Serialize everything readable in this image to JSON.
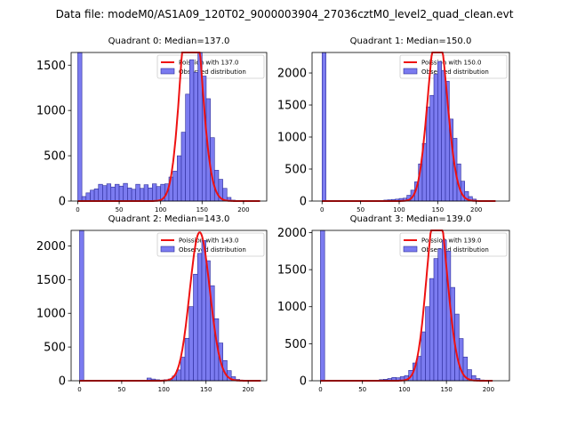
{
  "figure": {
    "suptitle": "Data file: modeM0/AS1A09_120T02_9000003904_27036cztM0_level2_quad_clean.evt"
  },
  "colors": {
    "bar_fill": "#7b7bf0",
    "bar_edge": "#2c2c9a",
    "curve": "#ee1111",
    "legend_border": "#cccccc"
  },
  "chart_data": [
    {
      "type": "bar",
      "title": "Quadrant 0: Median=137.0",
      "xlim": [
        -8,
        228
      ],
      "ylim": [
        0,
        1640
      ],
      "xticks": [
        0,
        50,
        100,
        150,
        200
      ],
      "yticks": [
        0,
        500,
        1000,
        1500
      ],
      "bin_width": 5,
      "legend": {
        "placement": "top-right",
        "curve_label": "Poission with 137.0",
        "bars_label": "Observed distribution"
      },
      "bins": [
        [
          0,
          1640
        ],
        [
          5,
          50
        ],
        [
          10,
          90
        ],
        [
          15,
          120
        ],
        [
          20,
          135
        ],
        [
          25,
          185
        ],
        [
          30,
          170
        ],
        [
          35,
          190
        ],
        [
          40,
          155
        ],
        [
          45,
          185
        ],
        [
          50,
          165
        ],
        [
          55,
          195
        ],
        [
          60,
          145
        ],
        [
          65,
          130
        ],
        [
          70,
          185
        ],
        [
          75,
          140
        ],
        [
          80,
          180
        ],
        [
          85,
          145
        ],
        [
          90,
          190
        ],
        [
          95,
          160
        ],
        [
          100,
          185
        ],
        [
          105,
          190
        ],
        [
          110,
          265
        ],
        [
          115,
          330
        ],
        [
          120,
          500
        ],
        [
          125,
          760
        ],
        [
          130,
          1180
        ],
        [
          135,
          1560
        ],
        [
          140,
          1420
        ],
        [
          145,
          1640
        ],
        [
          150,
          1380
        ],
        [
          155,
          1130
        ],
        [
          160,
          700
        ],
        [
          165,
          340
        ],
        [
          170,
          240
        ],
        [
          175,
          140
        ],
        [
          180,
          40
        ],
        [
          185,
          10
        ],
        [
          190,
          5
        ]
      ],
      "curve": {
        "mean": 137,
        "x_range": [
          0,
          220
        ]
      }
    },
    {
      "type": "bar",
      "title": "Quadrant 1: Median=150.0",
      "xlim": [
        -13,
        243
      ],
      "ylim": [
        0,
        2320
      ],
      "xticks": [
        0,
        50,
        100,
        150,
        200
      ],
      "yticks": [
        0,
        500,
        1000,
        1500,
        2000
      ],
      "bin_width": 5,
      "legend": {
        "placement": "top-right",
        "curve_label": "Poission with 150.0",
        "bars_label": "Observed distribution"
      },
      "bins": [
        [
          0,
          2320
        ],
        [
          80,
          15
        ],
        [
          85,
          20
        ],
        [
          90,
          25
        ],
        [
          95,
          30
        ],
        [
          100,
          40
        ],
        [
          105,
          45
        ],
        [
          110,
          90
        ],
        [
          115,
          170
        ],
        [
          120,
          300
        ],
        [
          125,
          580
        ],
        [
          130,
          900
        ],
        [
          135,
          1470
        ],
        [
          140,
          1650
        ],
        [
          145,
          1980
        ],
        [
          150,
          2180
        ],
        [
          155,
          2040
        ],
        [
          160,
          1870
        ],
        [
          165,
          1280
        ],
        [
          170,
          980
        ],
        [
          175,
          580
        ],
        [
          180,
          310
        ],
        [
          185,
          150
        ],
        [
          190,
          70
        ],
        [
          195,
          30
        ],
        [
          200,
          10
        ]
      ],
      "curve": {
        "mean": 150,
        "x_range": [
          0,
          225
        ]
      }
    },
    {
      "type": "bar",
      "title": "Quadrant 2: Median=143.0",
      "xlim": [
        -10,
        222
      ],
      "ylim": [
        0,
        2230
      ],
      "xticks": [
        0,
        50,
        100,
        150,
        200
      ],
      "yticks": [
        0,
        500,
        1000,
        1500,
        2000
      ],
      "bin_width": 5,
      "legend": {
        "placement": "top-right",
        "curve_label": "Poission with 143.0",
        "bars_label": "Observed distribution"
      },
      "bins": [
        [
          0,
          2230
        ],
        [
          80,
          40
        ],
        [
          85,
          25
        ],
        [
          90,
          15
        ],
        [
          95,
          10
        ],
        [
          100,
          15
        ],
        [
          105,
          25
        ],
        [
          110,
          70
        ],
        [
          115,
          160
        ],
        [
          120,
          350
        ],
        [
          125,
          630
        ],
        [
          130,
          1100
        ],
        [
          135,
          1580
        ],
        [
          140,
          1890
        ],
        [
          145,
          2080
        ],
        [
          150,
          1780
        ],
        [
          155,
          1410
        ],
        [
          160,
          920
        ],
        [
          165,
          560
        ],
        [
          170,
          300
        ],
        [
          175,
          150
        ],
        [
          180,
          60
        ],
        [
          185,
          20
        ],
        [
          190,
          10
        ]
      ],
      "curve": {
        "mean": 143,
        "x_range": [
          0,
          215
        ]
      }
    },
    {
      "type": "bar",
      "title": "Quadrant 3: Median=139.0",
      "xlim": [
        -10,
        225
      ],
      "ylim": [
        0,
        2030
      ],
      "xticks": [
        0,
        50,
        100,
        150,
        200
      ],
      "yticks": [
        0,
        500,
        1000,
        1500,
        2000
      ],
      "bin_width": 5,
      "legend": {
        "placement": "top-right",
        "curve_label": "Poission with 139.0",
        "bars_label": "Observed distribution"
      },
      "bins": [
        [
          0,
          2030
        ],
        [
          70,
          15
        ],
        [
          75,
          20
        ],
        [
          80,
          30
        ],
        [
          85,
          45
        ],
        [
          90,
          40
        ],
        [
          95,
          55
        ],
        [
          100,
          70
        ],
        [
          105,
          140
        ],
        [
          110,
          240
        ],
        [
          115,
          330
        ],
        [
          120,
          660
        ],
        [
          125,
          1000
        ],
        [
          130,
          1380
        ],
        [
          135,
          1650
        ],
        [
          140,
          1780
        ],
        [
          145,
          1900
        ],
        [
          150,
          1750
        ],
        [
          155,
          1260
        ],
        [
          160,
          900
        ],
        [
          165,
          570
        ],
        [
          170,
          320
        ],
        [
          175,
          150
        ],
        [
          180,
          70
        ],
        [
          185,
          30
        ],
        [
          190,
          10
        ]
      ],
      "curve": {
        "mean": 139,
        "x_range": [
          0,
          205
        ]
      }
    }
  ]
}
